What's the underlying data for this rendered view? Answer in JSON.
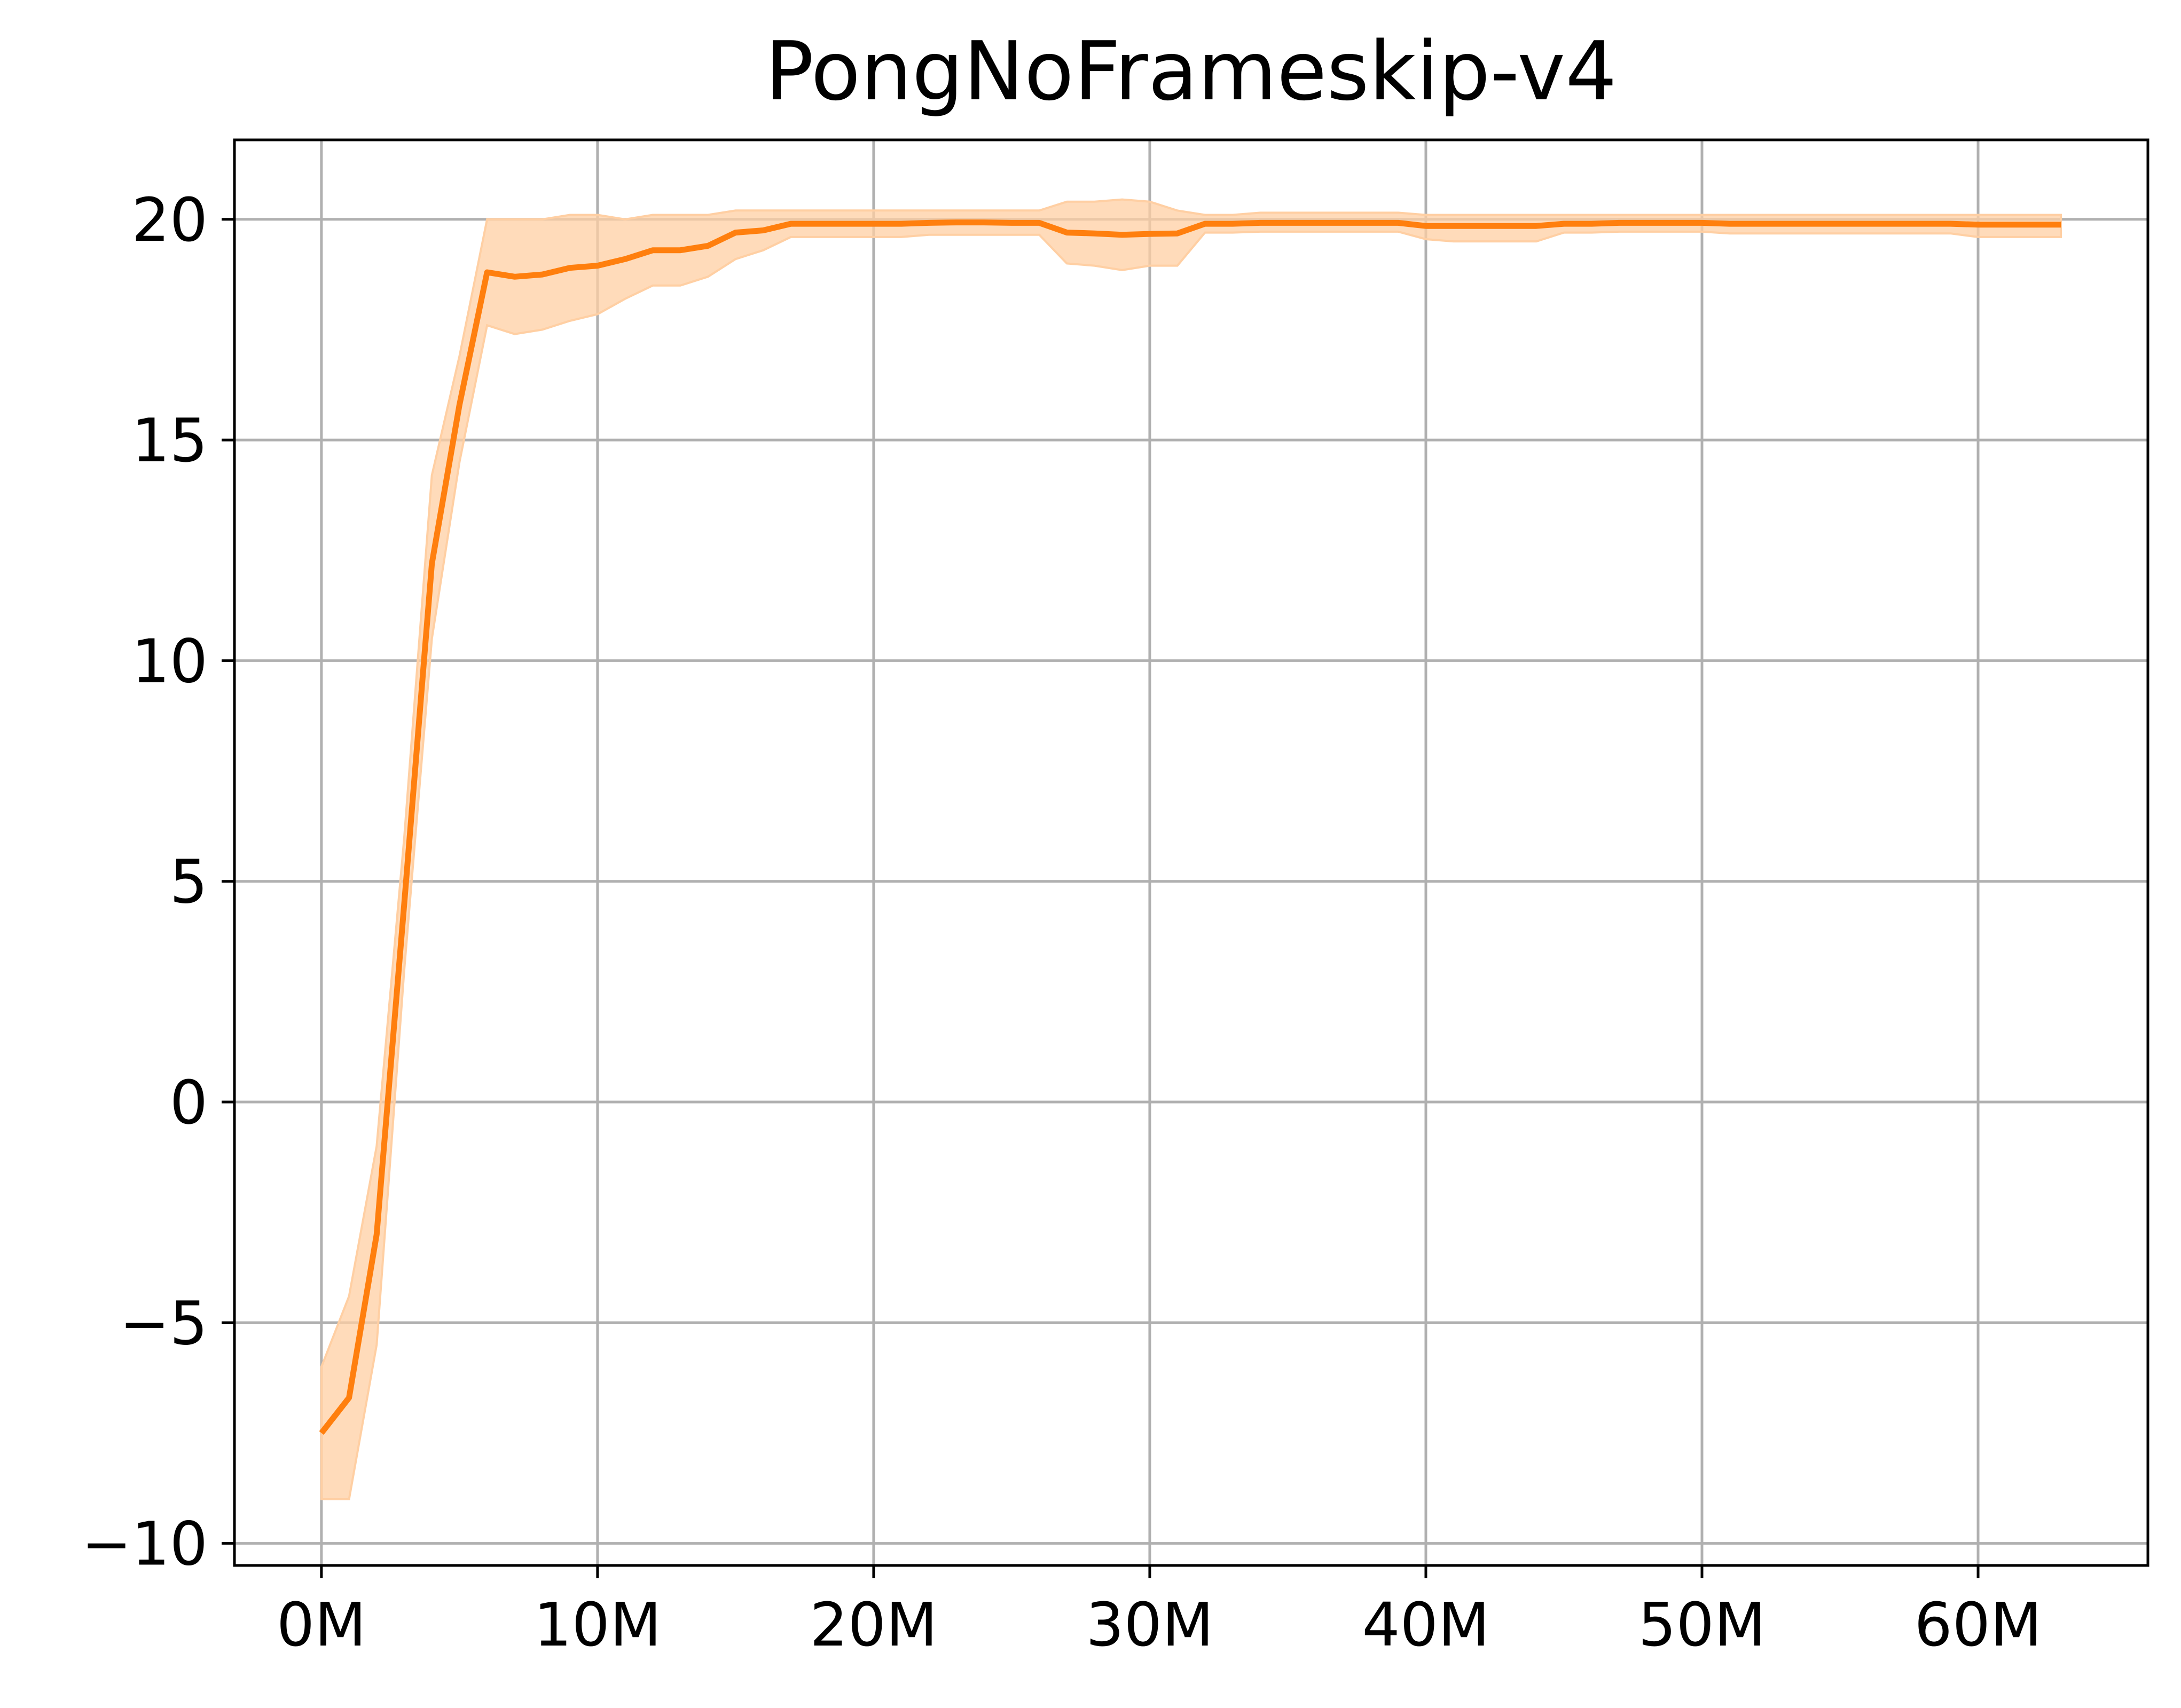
{
  "chart_data": {
    "type": "line",
    "title": "PongNoFrameskip-v4",
    "xlabel": "",
    "ylabel": "",
    "xlim": [
      -3.15,
      66.15
    ],
    "ylim": [
      -10.5,
      21.8
    ],
    "grid": true,
    "legend": "none",
    "x_ticks": [
      {
        "value": 0,
        "label": "0M"
      },
      {
        "value": 10,
        "label": "10M"
      },
      {
        "value": 20,
        "label": "20M"
      },
      {
        "value": 30,
        "label": "30M"
      },
      {
        "value": 40,
        "label": "40M"
      },
      {
        "value": 50,
        "label": "50M"
      },
      {
        "value": 60,
        "label": "60M"
      }
    ],
    "y_ticks": [
      {
        "value": -10,
        "label": "−10"
      },
      {
        "value": -5,
        "label": "−5"
      },
      {
        "value": 0,
        "label": "0"
      },
      {
        "value": 5,
        "label": "5"
      },
      {
        "value": 10,
        "label": "10"
      },
      {
        "value": 15,
        "label": "15"
      },
      {
        "value": 20,
        "label": "20"
      }
    ],
    "series": [
      {
        "color": "#ff7f0e",
        "band_color": "#ffcfa3",
        "x": [
          0,
          1,
          2,
          3,
          4,
          5,
          6,
          7,
          8,
          9,
          10,
          11,
          12,
          13,
          14,
          15,
          16,
          17,
          18,
          19,
          20,
          21,
          22,
          23,
          24,
          25,
          26,
          27,
          28,
          29,
          30,
          31,
          32,
          33,
          34,
          35,
          36,
          37,
          38,
          39,
          40,
          41,
          42,
          43,
          44,
          45,
          46,
          47,
          48,
          49,
          50,
          51,
          52,
          53,
          54,
          55,
          56,
          57,
          58,
          59,
          60,
          61,
          62,
          63
        ],
        "y": [
          -7.5,
          -6.7,
          -3.0,
          4.5,
          12.2,
          15.8,
          18.8,
          18.7,
          18.75,
          18.9,
          18.95,
          19.1,
          19.3,
          19.3,
          19.4,
          19.7,
          19.75,
          19.9,
          19.9,
          19.9,
          19.9,
          19.9,
          19.92,
          19.93,
          19.93,
          19.92,
          19.92,
          19.7,
          19.68,
          19.65,
          19.67,
          19.68,
          19.9,
          19.9,
          19.92,
          19.92,
          19.92,
          19.92,
          19.92,
          19.92,
          19.85,
          19.85,
          19.85,
          19.85,
          19.85,
          19.9,
          19.9,
          19.92,
          19.92,
          19.92,
          19.92,
          19.9,
          19.9,
          19.9,
          19.9,
          19.9,
          19.9,
          19.9,
          19.9,
          19.9,
          19.88,
          19.88,
          19.88,
          19.88
        ],
        "upper": [
          -6.0,
          -4.4,
          -1.0,
          6.0,
          14.2,
          16.9,
          20.0,
          20.0,
          20.0,
          20.1,
          20.1,
          20.0,
          20.1,
          20.1,
          20.1,
          20.2,
          20.2,
          20.2,
          20.2,
          20.2,
          20.2,
          20.2,
          20.2,
          20.2,
          20.2,
          20.2,
          20.2,
          20.4,
          20.4,
          20.45,
          20.4,
          20.2,
          20.1,
          20.1,
          20.15,
          20.15,
          20.15,
          20.15,
          20.15,
          20.15,
          20.1,
          20.1,
          20.1,
          20.1,
          20.1,
          20.1,
          20.1,
          20.1,
          20.1,
          20.1,
          20.1,
          20.1,
          20.1,
          20.1,
          20.1,
          20.1,
          20.1,
          20.1,
          20.1,
          20.1,
          20.1,
          20.1,
          20.1,
          20.1
        ],
        "lower": [
          -9.0,
          -9.0,
          -5.5,
          3.0,
          10.5,
          14.5,
          17.6,
          17.4,
          17.5,
          17.7,
          17.85,
          18.2,
          18.5,
          18.5,
          18.7,
          19.1,
          19.3,
          19.6,
          19.6,
          19.6,
          19.6,
          19.6,
          19.65,
          19.65,
          19.65,
          19.65,
          19.65,
          19.0,
          18.95,
          18.85,
          18.95,
          18.95,
          19.7,
          19.7,
          19.72,
          19.72,
          19.72,
          19.72,
          19.72,
          19.72,
          19.55,
          19.5,
          19.5,
          19.5,
          19.5,
          19.7,
          19.7,
          19.72,
          19.72,
          19.72,
          19.72,
          19.68,
          19.68,
          19.68,
          19.68,
          19.68,
          19.68,
          19.68,
          19.68,
          19.68,
          19.6,
          19.6,
          19.6,
          19.6
        ]
      }
    ]
  }
}
